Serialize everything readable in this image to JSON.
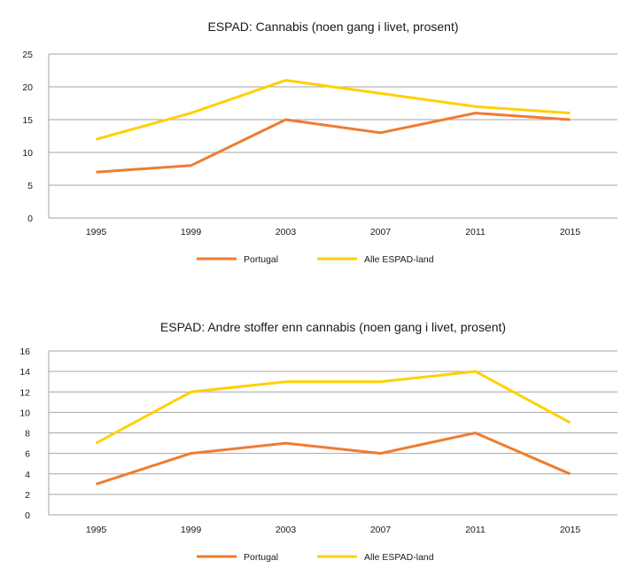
{
  "chart_data": [
    {
      "type": "line",
      "title": "ESPAD: Cannabis (noen gang i livet, prosent)",
      "categories": [
        "1995",
        "1999",
        "2003",
        "2007",
        "2011",
        "2015"
      ],
      "ylim": [
        0,
        25
      ],
      "yticks": [
        "0",
        "5",
        "10",
        "15",
        "20",
        "25"
      ],
      "grid": true,
      "legend_position": "bottom",
      "series": [
        {
          "name": "Portugal",
          "color": "#ed7d31",
          "values": [
            7,
            8,
            15,
            13,
            16,
            15
          ]
        },
        {
          "name": "Alle ESPAD-land",
          "color": "#ffd000",
          "values": [
            12,
            16,
            21,
            19,
            17,
            16
          ]
        }
      ]
    },
    {
      "type": "line",
      "title": "ESPAD: Andre stoffer enn cannabis (noen gang i livet, prosent)",
      "categories": [
        "1995",
        "1999",
        "2003",
        "2007",
        "2011",
        "2015"
      ],
      "ylim": [
        0,
        16
      ],
      "yticks": [
        "0",
        "2",
        "4",
        "6",
        "8",
        "10",
        "12",
        "14",
        "16"
      ],
      "grid": true,
      "legend_position": "bottom",
      "series": [
        {
          "name": "Portugal",
          "color": "#ed7d31",
          "values": [
            3,
            6,
            7,
            6,
            8,
            4
          ]
        },
        {
          "name": "Alle ESPAD-land",
          "color": "#ffd000",
          "values": [
            7,
            12,
            13,
            13,
            14,
            9
          ]
        }
      ]
    }
  ]
}
